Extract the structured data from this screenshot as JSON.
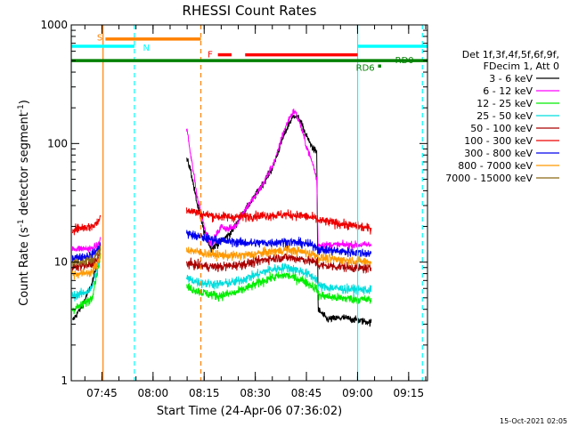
{
  "chart_data": {
    "type": "line",
    "title": "RHESSI Count Rates",
    "xlabel": "Start Time (24-Apr-06 07:36:02)",
    "ylabel_parts": [
      "Count Rate (s",
      "-1",
      " detector segment",
      "-1",
      ")"
    ],
    "y_scale": "log",
    "ylim": [
      1,
      1000
    ],
    "y_ticks": [
      {
        "value": 1,
        "label": "1"
      },
      {
        "value": 10,
        "label": "10"
      },
      {
        "value": 100,
        "label": "100"
      },
      {
        "value": 1000,
        "label": "1000"
      }
    ],
    "xlim_min": [
      -0.03,
      104.5
    ],
    "x_ticks": [
      {
        "minute": 8.97,
        "label": "07:45"
      },
      {
        "minute": 23.97,
        "label": "08:00"
      },
      {
        "minute": 38.97,
        "label": "08:15"
      },
      {
        "minute": 53.97,
        "label": "08:30"
      },
      {
        "minute": 68.97,
        "label": "08:45"
      },
      {
        "minute": 83.97,
        "label": "09:00"
      },
      {
        "minute": 98.97,
        "label": "09:15"
      }
    ],
    "legend_header": [
      "Det 1f,3f,4f,5f,6f,9f,",
      "FDecim 1, Att 0"
    ],
    "legend_position": "right",
    "series": [
      {
        "name": "3 - 6 keV",
        "color": "#000000",
        "values": [
          [
            0.3,
            3.2
          ],
          [
            3,
            4.2
          ],
          [
            6,
            6.5
          ],
          [
            8,
            11
          ],
          [
            8.6,
            12
          ],
          [
            33.8,
            75
          ],
          [
            35,
            60
          ],
          [
            37,
            30
          ],
          [
            39,
            18
          ],
          [
            41,
            13
          ],
          [
            44,
            15
          ],
          [
            47,
            18
          ],
          [
            50,
            25
          ],
          [
            53,
            33
          ],
          [
            56,
            45
          ],
          [
            59,
            62
          ],
          [
            62,
            110
          ],
          [
            64,
            150
          ],
          [
            65.5,
            175
          ],
          [
            67,
            160
          ],
          [
            69,
            115
          ],
          [
            71,
            90
          ],
          [
            72,
            85
          ],
          [
            72.4,
            4
          ],
          [
            75,
            3.3
          ],
          [
            80,
            3.4
          ],
          [
            85,
            3.2
          ],
          [
            88,
            3.1
          ]
        ]
      },
      {
        "name": "6 - 12 keV",
        "color": "#ff00ff",
        "values": [
          [
            0.3,
            13
          ],
          [
            3,
            13
          ],
          [
            6,
            13
          ],
          [
            8,
            14
          ],
          [
            8.6,
            16
          ],
          [
            33.8,
            140
          ],
          [
            35,
            80
          ],
          [
            37,
            35
          ],
          [
            39,
            20
          ],
          [
            41,
            14
          ],
          [
            42,
            16
          ],
          [
            44,
            20
          ],
          [
            46,
            19
          ],
          [
            48,
            20
          ],
          [
            51,
            28
          ],
          [
            54,
            36
          ],
          [
            57,
            50
          ],
          [
            60,
            75
          ],
          [
            62,
            120
          ],
          [
            64,
            165
          ],
          [
            65.5,
            190
          ],
          [
            67,
            150
          ],
          [
            69,
            95
          ],
          [
            71,
            65
          ],
          [
            72,
            50
          ],
          [
            72.4,
            14
          ],
          [
            75,
            14
          ],
          [
            80,
            14
          ],
          [
            85,
            14
          ],
          [
            88,
            14
          ]
        ]
      },
      {
        "name": "12 - 25 keV",
        "color": "#00ee00",
        "values": [
          [
            0.3,
            4
          ],
          [
            3,
            4.3
          ],
          [
            6,
            5
          ],
          [
            8,
            9.5
          ],
          [
            8.6,
            12
          ],
          [
            33.8,
            6.2
          ],
          [
            38,
            5.6
          ],
          [
            43,
            5.2
          ],
          [
            48,
            5.5
          ],
          [
            53,
            6.3
          ],
          [
            58,
            7.3
          ],
          [
            63,
            7.8
          ],
          [
            68,
            7.0
          ],
          [
            72,
            6.0
          ],
          [
            72.4,
            5.3
          ],
          [
            78,
            5.0
          ],
          [
            83,
            4.9
          ],
          [
            88,
            4.8
          ]
        ]
      },
      {
        "name": "25 - 50 keV",
        "color": "#00dddd",
        "values": [
          [
            0.3,
            5.2
          ],
          [
            3,
            5.4
          ],
          [
            6,
            6
          ],
          [
            8,
            10
          ],
          [
            8.6,
            13
          ],
          [
            33.8,
            7.3
          ],
          [
            38,
            6.7
          ],
          [
            43,
            6.5
          ],
          [
            48,
            6.8
          ],
          [
            53,
            7.6
          ],
          [
            58,
            8.6
          ],
          [
            63,
            9.1
          ],
          [
            68,
            8.3
          ],
          [
            72,
            7.2
          ],
          [
            72.4,
            6.3
          ],
          [
            78,
            6.0
          ],
          [
            83,
            5.9
          ],
          [
            88,
            5.8
          ]
        ]
      },
      {
        "name": "50 - 100 keV",
        "color": "#aa0000",
        "values": [
          [
            0.3,
            9
          ],
          [
            3,
            9.3
          ],
          [
            6,
            9.5
          ],
          [
            8,
            11
          ],
          [
            8.6,
            14
          ],
          [
            33.8,
            9.8
          ],
          [
            38,
            9.3
          ],
          [
            43,
            9.1
          ],
          [
            48,
            9.4
          ],
          [
            53,
            9.9
          ],
          [
            58,
            10.7
          ],
          [
            63,
            11.0
          ],
          [
            68,
            10.6
          ],
          [
            72,
            9.9
          ],
          [
            72.4,
            9.4
          ],
          [
            78,
            9.2
          ],
          [
            83,
            9.0
          ],
          [
            88,
            8.8
          ]
        ]
      },
      {
        "name": "100 - 300 keV",
        "color": "#ee0000",
        "values": [
          [
            0.3,
            19
          ],
          [
            3,
            19.5
          ],
          [
            6,
            20
          ],
          [
            8,
            22
          ],
          [
            8.6,
            25
          ],
          [
            33.8,
            28
          ],
          [
            38,
            25.5
          ],
          [
            43,
            24.3
          ],
          [
            48,
            24.0
          ],
          [
            53,
            24.5
          ],
          [
            58,
            24.8
          ],
          [
            63,
            25.2
          ],
          [
            68,
            24.6
          ],
          [
            72,
            23.2
          ],
          [
            72.4,
            22.5
          ],
          [
            78,
            21.3
          ],
          [
            83,
            20.2
          ],
          [
            88,
            19.2
          ]
        ]
      },
      {
        "name": "300 - 800 keV",
        "color": "#0000ee",
        "values": [
          [
            0.3,
            11
          ],
          [
            3,
            11
          ],
          [
            6,
            11.5
          ],
          [
            8,
            13
          ],
          [
            8.6,
            15
          ],
          [
            33.8,
            17.5
          ],
          [
            38,
            16.2
          ],
          [
            43,
            15.3
          ],
          [
            48,
            14.8
          ],
          [
            53,
            14.5
          ],
          [
            58,
            14.6
          ],
          [
            63,
            14.9
          ],
          [
            68,
            14.4
          ],
          [
            72,
            13.6
          ],
          [
            72.4,
            12.8
          ],
          [
            78,
            12.4
          ],
          [
            83,
            12.1
          ],
          [
            88,
            11.8
          ]
        ]
      },
      {
        "name": "800 - 7000 keV",
        "color": "#ff9900",
        "values": [
          [
            0.3,
            8
          ],
          [
            3,
            8
          ],
          [
            6,
            8.3
          ],
          [
            8,
            10
          ],
          [
            8.6,
            13
          ],
          [
            33.8,
            12.8
          ],
          [
            38,
            12.0
          ],
          [
            43,
            11.5
          ],
          [
            48,
            11.3
          ],
          [
            53,
            11.6
          ],
          [
            58,
            12.2
          ],
          [
            63,
            12.7
          ],
          [
            68,
            12.2
          ],
          [
            72,
            11.5
          ],
          [
            72.4,
            10.9
          ],
          [
            78,
            10.5
          ],
          [
            83,
            10.3
          ],
          [
            88,
            10.0
          ]
        ]
      },
      {
        "name": "7000 - 15000 keV",
        "color": "#8b6914",
        "values": [
          [
            0.3,
            10
          ],
          [
            3,
            10
          ],
          [
            6,
            10.5
          ],
          [
            8,
            12
          ],
          [
            8.6,
            13
          ]
        ]
      }
    ],
    "flag_bars": [
      {
        "label": "S",
        "color": "#ff8000",
        "y": 760,
        "start": 10,
        "end": 38,
        "label_at": 7.5,
        "label_y": 790
      },
      {
        "label": "N",
        "color": "#00ffff",
        "y": 660,
        "start": 0,
        "end": 18.5,
        "label_at": 21,
        "label_y": 650
      },
      {
        "label": "F",
        "color": "#ff0000",
        "y": 560,
        "start": 43,
        "end": 47,
        "label_at": 40,
        "label_y": 570
      },
      {
        "label": "",
        "color": "#ff0000",
        "y": 560,
        "start": 51,
        "end": 84,
        "label_at": null,
        "label_y": null
      },
      {
        "label": "",
        "color": "#00ffff",
        "y": 660,
        "start": 84,
        "end": 104.5,
        "label_at": null,
        "label_y": null
      },
      {
        "label": "RD0",
        "color": "#008000",
        "y": 500,
        "start": 0,
        "end": 104.5,
        "label_at": 95,
        "label_y": 510
      },
      {
        "label": "RD6",
        "color": "#008000",
        "y": 450,
        "start": 90,
        "end": 90.9,
        "label_at": 83.5,
        "label_y": 440
      }
    ],
    "vlines": [
      {
        "minute": 0,
        "color": "#00ffff",
        "dashed": false
      },
      {
        "minute": 9.3,
        "color": "#ff8000",
        "dashed": false
      },
      {
        "minute": 18.5,
        "color": "#00ffff",
        "dashed": true
      },
      {
        "minute": 38,
        "color": "#ff8000",
        "dashed": true
      },
      {
        "minute": 84,
        "color": "#00ffff",
        "dashed": false
      },
      {
        "minute": 103,
        "color": "#00ffff",
        "dashed": true
      }
    ]
  },
  "footer": {
    "timestamp": "15-Oct-2021 02:05"
  }
}
